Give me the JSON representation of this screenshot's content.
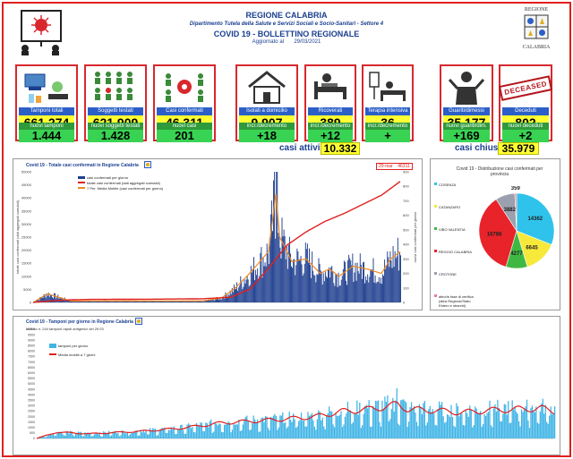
{
  "header": {
    "region": "REGIONE CALABRIA",
    "department": "Dipartimento Tutela della Salute e Servizi Sociali e Socio-Sanitari - Settore 4",
    "title": "COVID 19 - BOLLETTINO REGIONALE",
    "updated_label": "Aggiornato al",
    "updated_date": "29/03/2021",
    "logo_top": "REGIONE",
    "logo_bottom": "CALABRIA"
  },
  "cards": [
    {
      "label": "Tamponi totali",
      "value": "661.274",
      "sub_label": "nuovi tamponi",
      "sub_value": "1.444",
      "icon": "lab-microscope-icon"
    },
    {
      "label": "Soggetti testati",
      "value": "621.909",
      "sub_label": "nuovi soggetti testati",
      "sub_value": "1.428",
      "icon": "people-grid-icon"
    },
    {
      "label": "Casi confermati",
      "value": "46.311",
      "sub_label": "nuovi casi",
      "sub_value": "201",
      "icon": "virus-people-icon"
    },
    {
      "label": "Isolati a domicilio",
      "value": "9.907",
      "sub_label": "incr./decremento",
      "sub_value": "+18",
      "icon": "house-icon"
    },
    {
      "label": "Ricoverati",
      "value": "389",
      "sub_label": "incr./decremento",
      "sub_value": "+12",
      "icon": "hospital-bed-icon"
    },
    {
      "label": "Terapia intensiva",
      "value": "36",
      "sub_label": "incr./decremento",
      "sub_value": "+",
      "icon": "icu-bed-icon"
    },
    {
      "label": "Guariti/dimessi",
      "value": "35.177",
      "sub_label": "nuovi guariti/dim.",
      "sub_value": "+169",
      "icon": "recovered-person-icon"
    },
    {
      "label": "Deceduti",
      "value": "802",
      "sub_label": "nuovi deceduti",
      "sub_value": "+2",
      "icon": "deceased-stamp-icon",
      "stamp_text": "DECEASED"
    }
  ],
  "summary": {
    "attivi_label": "casi attivi",
    "attivi_value": "10.332",
    "chiusi_label": "casi chiusi",
    "chiusi_value": "35.979"
  },
  "colors": {
    "frame": "#e02020",
    "accent_blue": "#1a3f8f",
    "label_blue": "#2b5fc7",
    "value_yellow": "#ffff33",
    "green_label": "#2f9a3c",
    "green_value": "#39d353",
    "bar_blue": "#1f3f8f",
    "bar_light_blue": "#3fb4e6",
    "line_red": "#e02020",
    "line_orange": "#f08a24"
  },
  "chart_data": [
    {
      "type": "bar",
      "title": "Covid 19 - Totale casi confermati in Regione Calabria",
      "tag": "29-mar",
      "tag_value": "46311",
      "legend": [
        "casi confermati per giorno",
        "totale casi confermati (dati aggregati cumulati)",
        "7 Per. Media Mobile (casi confermati per giorno)"
      ],
      "ylabel": "totale casi confermati (dati aggregati cumulati)",
      "y2label": "nuovi casi confermati per giorno",
      "left_ticks": [
        "0",
        "5000",
        "10000",
        "15000",
        "20000",
        "25000",
        "30000",
        "35000",
        "40000",
        "45000",
        "50000"
      ],
      "right_ticks": [
        "0",
        "100",
        "200",
        "300",
        "400",
        "500",
        "600",
        "700",
        "800",
        "900"
      ],
      "left_ylim": [
        0,
        50000
      ],
      "right_ylim": [
        0,
        900
      ],
      "days": 390,
      "cumulative_anchors": [
        [
          0,
          0
        ],
        [
          20,
          600
        ],
        [
          40,
          1000
        ],
        [
          60,
          1150
        ],
        [
          120,
          1230
        ],
        [
          180,
          1400
        ],
        [
          210,
          2000
        ],
        [
          230,
          5000
        ],
        [
          250,
          13000
        ],
        [
          270,
          22000
        ],
        [
          290,
          27000
        ],
        [
          310,
          31000
        ],
        [
          330,
          34000
        ],
        [
          350,
          37500
        ],
        [
          370,
          41000
        ],
        [
          390,
          46311
        ]
      ],
      "daily_anchors": [
        [
          0,
          0
        ],
        [
          15,
          60
        ],
        [
          25,
          40
        ],
        [
          40,
          10
        ],
        [
          180,
          10
        ],
        [
          200,
          30
        ],
        [
          215,
          100
        ],
        [
          230,
          200
        ],
        [
          250,
          350
        ],
        [
          258,
          750
        ],
        [
          262,
          450
        ],
        [
          275,
          280
        ],
        [
          290,
          300
        ],
        [
          305,
          200
        ],
        [
          315,
          230
        ],
        [
          325,
          180
        ],
        [
          340,
          250
        ],
        [
          355,
          230
        ],
        [
          370,
          200
        ],
        [
          380,
          300
        ],
        [
          390,
          350
        ]
      ]
    },
    {
      "type": "pie",
      "title": "Covid 19 - Distribuzione casi confermati per provincia",
      "legend": [
        "COSENZA",
        "CATANZARO",
        "VIBO VALENTIA",
        "REGGIO CALABRIA",
        "CROTONE",
        "altro/in fase di verifica (altra Regione/Stato Estero e sbarchi)"
      ],
      "slices": [
        {
          "name": "COSENZA",
          "value": 14362,
          "color": "#2fc3ec"
        },
        {
          "name": "CATANZARO",
          "value": 6645,
          "color": "#f6e93a"
        },
        {
          "name": "VIBO VALENTIA",
          "value": 4277,
          "color": "#3fb843"
        },
        {
          "name": "REGGIO CALABRIA",
          "value": 16786,
          "color": "#e8232a"
        },
        {
          "name": "CROTONE",
          "value": 3882,
          "color": "#9aa0ad"
        },
        {
          "name": "altro/in fase di verifica",
          "value": 359,
          "color": "#ef7aa0"
        }
      ],
      "labels": [
        "14362",
        "6645",
        "4277",
        "16786",
        "3882",
        "359"
      ]
    },
    {
      "type": "bar",
      "title": "Covid 19 - Tamponi per giorno in Regione Calabria",
      "subtitle": "Incluso n. 244 tamponi rapidi antigenici del 29.03",
      "legend": [
        "tamponi per giorno",
        "Media mobile a 7 giorni"
      ],
      "y_ticks": [
        "0",
        "500",
        "1000",
        "1500",
        "2000",
        "2500",
        "3000",
        "3500",
        "4000",
        "4500",
        "5000",
        "5500",
        "6000",
        "6500",
        "7000",
        "7500",
        "8000",
        "8500",
        "9000",
        "9500",
        "10000"
      ],
      "ylim": [
        0,
        10000
      ],
      "days": 390,
      "anchors": [
        [
          0,
          0
        ],
        [
          15,
          600
        ],
        [
          40,
          450
        ],
        [
          80,
          700
        ],
        [
          110,
          1000
        ],
        [
          140,
          1500
        ],
        [
          180,
          1800
        ],
        [
          210,
          2100
        ],
        [
          230,
          2600
        ],
        [
          250,
          2800
        ],
        [
          265,
          3100
        ],
        [
          272,
          3300
        ],
        [
          280,
          2800
        ],
        [
          300,
          2700
        ],
        [
          320,
          2500
        ],
        [
          340,
          2700
        ],
        [
          360,
          2800
        ],
        [
          380,
          2900
        ],
        [
          390,
          2600
        ]
      ]
    }
  ]
}
